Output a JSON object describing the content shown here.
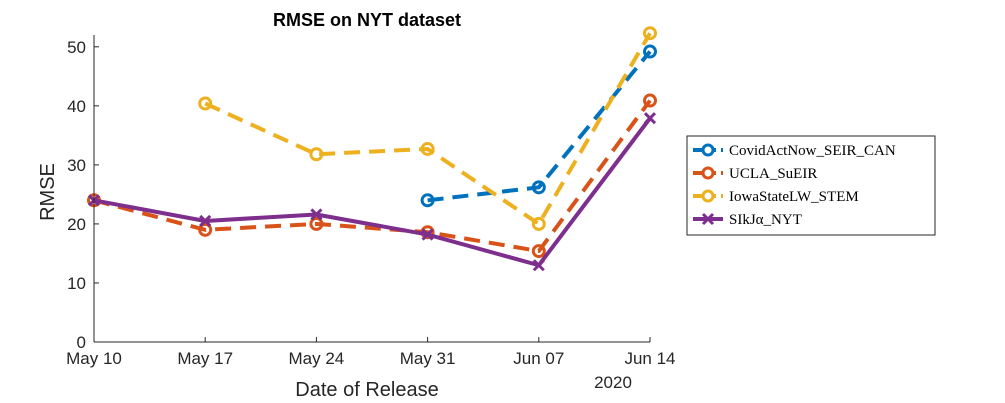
{
  "chart_data": {
    "type": "line",
    "title": "RMSE on NYT dataset",
    "xlabel": "Date of Release",
    "ylabel": "RMSE",
    "x_year_label": "2020",
    "x_ticks": [
      "May 10",
      "May 17",
      "May 24",
      "May 31",
      "Jun 07",
      "Jun 14"
    ],
    "xlim": [
      "2020-05-10",
      "2020-06-14"
    ],
    "ylim": [
      0,
      52
    ],
    "y_ticks": [
      0,
      10,
      20,
      30,
      40,
      50
    ],
    "grid": false,
    "legend_position": "outside-right",
    "series": [
      {
        "name": "CovidActNow_SEIR_CAN",
        "color": "#0072BD",
        "style": "dashed",
        "marker": "circle",
        "points": [
          {
            "x": "2020-05-31",
            "y": 24.0
          },
          {
            "x": "2020-06-07",
            "y": 26.2
          },
          {
            "x": "2020-06-14",
            "y": 49.2
          }
        ]
      },
      {
        "name": "UCLA_SuEIR",
        "color": "#D95319",
        "style": "dashed",
        "marker": "circle",
        "points": [
          {
            "x": "2020-05-10",
            "y": 24.0
          },
          {
            "x": "2020-05-17",
            "y": 19.0
          },
          {
            "x": "2020-05-24",
            "y": 20.0
          },
          {
            "x": "2020-05-31",
            "y": 18.6
          },
          {
            "x": "2020-06-07",
            "y": 15.4
          },
          {
            "x": "2020-06-14",
            "y": 40.9
          }
        ]
      },
      {
        "name": "IowaStateLW_STEM",
        "color": "#EDB120",
        "style": "dashed",
        "marker": "circle",
        "points": [
          {
            "x": "2020-05-17",
            "y": 40.4
          },
          {
            "x": "2020-05-24",
            "y": 31.8
          },
          {
            "x": "2020-05-31",
            "y": 32.7
          },
          {
            "x": "2020-06-07",
            "y": 20.0
          },
          {
            "x": "2020-06-14",
            "y": 52.3
          }
        ]
      },
      {
        "name": "SIkJα_NYT",
        "color": "#7E2F8E",
        "style": "solid",
        "marker": "x",
        "points": [
          {
            "x": "2020-05-10",
            "y": 24.0
          },
          {
            "x": "2020-05-17",
            "y": 20.5
          },
          {
            "x": "2020-05-24",
            "y": 21.6
          },
          {
            "x": "2020-05-31",
            "y": 18.2
          },
          {
            "x": "2020-06-07",
            "y": 13.0
          },
          {
            "x": "2020-06-14",
            "y": 37.9
          }
        ]
      }
    ]
  }
}
